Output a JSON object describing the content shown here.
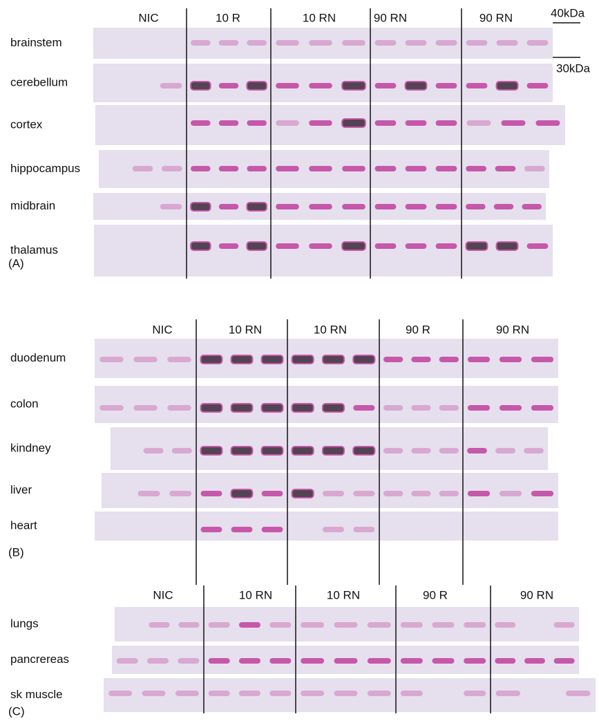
{
  "markers": [
    "40kDa",
    "30kDa"
  ],
  "panels": [
    {
      "letter": "(A)",
      "groups": [
        "NIC",
        "10 R",
        "10 RN",
        "90 RN",
        "90 RN"
      ],
      "rows": [
        "brainstem",
        "cerebellum",
        "cortex",
        "hippocampus",
        "midbrain",
        "thalamus"
      ]
    },
    {
      "letter": "(B)",
      "groups": [
        "NIC",
        "10 RN",
        "10 RN",
        "90 R",
        "90 RN"
      ],
      "rows": [
        "duodenum",
        "colon",
        "kindney",
        "liver",
        "heart"
      ]
    },
    {
      "letter": "(C)",
      "groups": [
        "NIC",
        "10 RN",
        "10 RN",
        "90 R",
        "90 RN"
      ],
      "rows": [
        "lungs",
        "pancrereas",
        "sk muscle"
      ]
    }
  ]
}
